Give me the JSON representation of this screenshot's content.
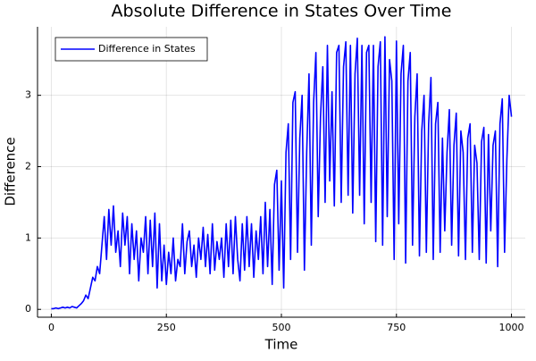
{
  "chart_data": {
    "type": "line",
    "title": "Absolute Difference in States Over Time",
    "x_label": "Time",
    "y_label": "Difference",
    "x": [
      0,
      5,
      10,
      15,
      20,
      25,
      30,
      35,
      40,
      45,
      50,
      55,
      60,
      65,
      70,
      75,
      80,
      85,
      90,
      95,
      100,
      105,
      110,
      115,
      120,
      125,
      130,
      135,
      140,
      145,
      150,
      155,
      160,
      165,
      170,
      175,
      180,
      185,
      190,
      195,
      200,
      205,
      210,
      215,
      220,
      225,
      230,
      235,
      240,
      245,
      250,
      255,
      260,
      265,
      270,
      275,
      280,
      285,
      290,
      295,
      300,
      305,
      310,
      315,
      320,
      325,
      330,
      335,
      340,
      345,
      350,
      355,
      360,
      365,
      370,
      375,
      380,
      385,
      390,
      395,
      400,
      405,
      410,
      415,
      420,
      425,
      430,
      435,
      440,
      445,
      450,
      455,
      460,
      465,
      470,
      475,
      480,
      485,
      490,
      495,
      500,
      505,
      510,
      515,
      520,
      525,
      530,
      535,
      540,
      545,
      550,
      555,
      560,
      565,
      570,
      575,
      580,
      585,
      590,
      595,
      600,
      605,
      610,
      615,
      620,
      625,
      630,
      635,
      640,
      645,
      650,
      655,
      660,
      665,
      670,
      675,
      680,
      685,
      690,
      695,
      700,
      705,
      710,
      715,
      720,
      725,
      730,
      735,
      740,
      745,
      750,
      755,
      760,
      765,
      770,
      775,
      780,
      785,
      790,
      795,
      800,
      805,
      810,
      815,
      820,
      825,
      830,
      835,
      840,
      845,
      850,
      855,
      860,
      865,
      870,
      875,
      880,
      885,
      890,
      895,
      900,
      905,
      910,
      915,
      920,
      925,
      930,
      935,
      940,
      945,
      950,
      955,
      960,
      965,
      970,
      975,
      980,
      985,
      990,
      995,
      1000
    ],
    "series": [
      {
        "name": "Difference in States",
        "color": "#0000ff",
        "values": [
          0.01,
          0.01,
          0.02,
          0.01,
          0.02,
          0.03,
          0.02,
          0.03,
          0.02,
          0.04,
          0.03,
          0.02,
          0.05,
          0.08,
          0.12,
          0.2,
          0.15,
          0.3,
          0.45,
          0.4,
          0.6,
          0.5,
          0.9,
          1.3,
          0.7,
          1.4,
          0.9,
          1.45,
          0.8,
          1.1,
          0.6,
          1.35,
          0.9,
          1.3,
          0.5,
          1.2,
          0.7,
          1.1,
          0.4,
          1.0,
          0.8,
          1.3,
          0.5,
          1.25,
          0.6,
          1.35,
          0.3,
          1.2,
          0.4,
          0.9,
          0.35,
          0.8,
          0.5,
          1.0,
          0.4,
          0.7,
          0.6,
          1.2,
          0.5,
          0.95,
          1.1,
          0.6,
          0.9,
          0.45,
          1.0,
          0.7,
          1.15,
          0.6,
          1.05,
          0.5,
          1.2,
          0.55,
          0.95,
          0.7,
          1.0,
          0.45,
          1.2,
          0.6,
          1.25,
          0.5,
          1.3,
          0.7,
          0.4,
          1.2,
          0.55,
          1.3,
          0.6,
          1.2,
          0.45,
          1.1,
          0.7,
          1.3,
          0.5,
          1.5,
          0.6,
          1.4,
          0.35,
          1.75,
          1.95,
          0.55,
          1.8,
          0.3,
          2.2,
          2.6,
          0.7,
          2.9,
          3.05,
          0.8,
          2.4,
          3.0,
          0.55,
          2.2,
          3.3,
          0.9,
          2.9,
          3.6,
          1.3,
          2.7,
          3.4,
          1.5,
          3.7,
          1.8,
          3.05,
          1.45,
          3.6,
          3.7,
          1.5,
          3.4,
          3.75,
          1.6,
          3.7,
          1.35,
          3.3,
          3.8,
          1.6,
          3.7,
          1.2,
          3.6,
          3.7,
          1.5,
          3.7,
          0.95,
          3.4,
          3.75,
          0.9,
          3.82,
          1.3,
          3.5,
          3.2,
          0.7,
          3.76,
          1.2,
          3.3,
          3.7,
          0.65,
          3.2,
          3.6,
          0.9,
          2.7,
          3.3,
          0.75,
          2.5,
          3.0,
          0.8,
          2.6,
          3.25,
          0.7,
          2.6,
          2.9,
          0.8,
          2.4,
          1.1,
          2.2,
          2.8,
          0.9,
          2.3,
          2.75,
          0.75,
          2.5,
          2.2,
          0.7,
          2.4,
          2.6,
          0.8,
          2.3,
          2.05,
          0.7,
          2.35,
          2.55,
          0.65,
          2.45,
          1.1,
          2.3,
          2.5,
          0.6,
          2.6,
          2.95,
          0.8,
          2.1,
          3.0,
          2.7
        ]
      }
    ],
    "xlim": [
      -30,
      1030
    ],
    "ylim": [
      -0.11,
      3.96
    ],
    "xticks": [
      0,
      250,
      500,
      750,
      1000
    ],
    "yticks": [
      0,
      1,
      2,
      3
    ],
    "grid": true,
    "legend": "top-left"
  }
}
